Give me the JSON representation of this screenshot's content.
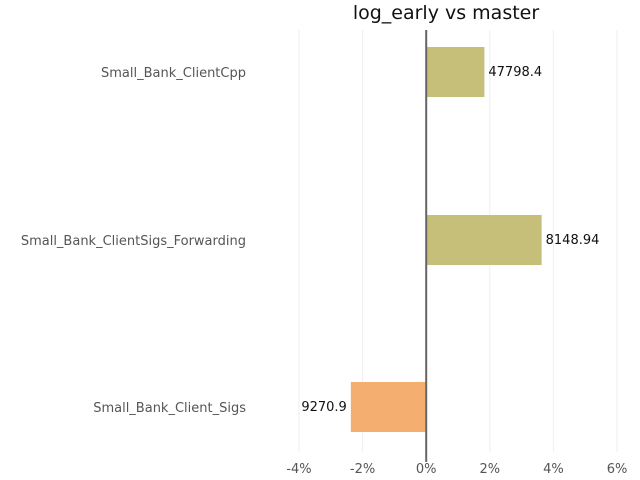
{
  "chart_data": {
    "type": "bar",
    "orientation": "horizontal",
    "title": "log_early vs master",
    "xlabel": "",
    "ylabel": "",
    "xlim": [
      -4,
      6
    ],
    "x_ticks": [
      -4,
      -2,
      0,
      2,
      4,
      6
    ],
    "x_tick_labels": [
      "-4%",
      "-2%",
      "0%",
      "2%",
      "4%",
      "6%"
    ],
    "grid": true,
    "categories": [
      "Small_Bank_ClientCpp",
      "Small_Bank_ClientSigs_Forwarding",
      "Small_Bank_Client_Sigs"
    ],
    "values": [
      1.83,
      3.63,
      -2.37
    ],
    "labels": [
      "47798.4",
      "8148.94",
      "9270.9"
    ],
    "colors": {
      "positive": "#c5bf7a",
      "negative": "#f4ae70",
      "zero_line": "#666666",
      "grid": "#eeeeee"
    }
  }
}
